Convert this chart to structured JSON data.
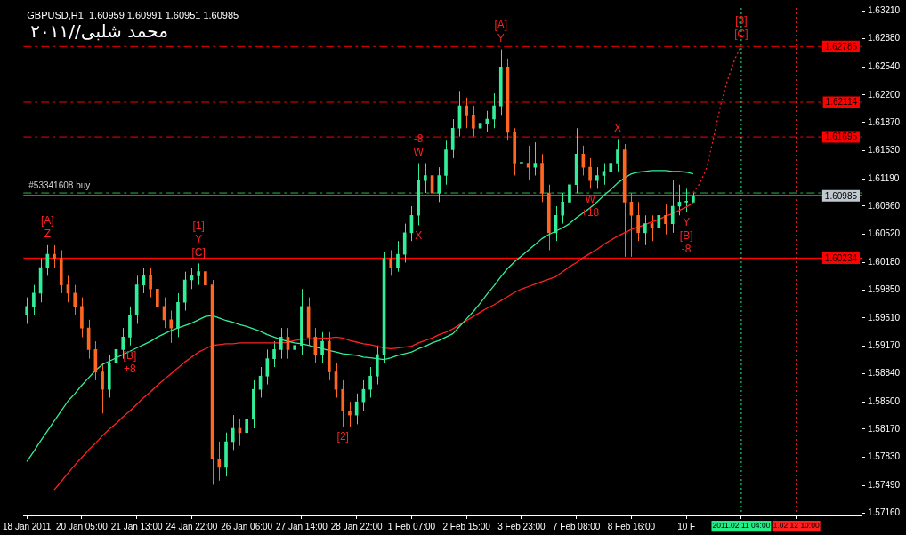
{
  "chart_data": {
    "type": "candlestick",
    "title": "GBPUSD,H1  1.60959 1.60991 1.60951 1.60985",
    "annotations": [
      "محمد شلبى//٢٠١١",
      {
        "text": "Z",
        "y": 1.6039
      },
      {
        "text": "[A]",
        "y": 1.6039
      },
      {
        "text": "[C]",
        "y": 1.6017
      },
      {
        "text": "Y",
        "y": 1.6017
      },
      {
        "text": "[1]",
        "y": 1.6017
      },
      {
        "text": "[B]",
        "y": 1.5918
      },
      {
        "text": "+8",
        "y": 1.5918
      },
      {
        "text": "[2]",
        "y": 1.582
      },
      {
        "text": "W",
        "y": 1.6138
      },
      {
        "text": "-8",
        "y": 1.6138
      },
      {
        "text": "X",
        "y": 1.6063
      },
      {
        "text": "Y",
        "y": 1.6275
      },
      {
        "text": "[A]",
        "y": 1.6275
      },
      {
        "text": "W",
        "y": 1.6107
      },
      {
        "text": "+18",
        "y": 1.6107
      },
      {
        "text": "X",
        "y": 1.6167
      },
      {
        "text": "Y",
        "y": 1.6079
      },
      {
        "text": "[B]",
        "y": 1.6079
      },
      {
        "text": "-8",
        "y": 1.6079
      },
      {
        "text": "[C]",
        "y": 1.628
      },
      {
        "text": "[3]",
        "y": 1.628
      }
    ],
    "categories": [
      "18 Jan 2011",
      null,
      null,
      null,
      null,
      null,
      null,
      null,
      "20 Jan 05:00",
      null,
      null,
      null,
      null,
      null,
      null,
      null,
      "21 Jan 13:00",
      null,
      null,
      null,
      null,
      null,
      null,
      null,
      "24 Jan 22:00",
      null,
      null,
      null,
      null,
      null,
      null,
      null,
      "26 Jan 06:00",
      null,
      null,
      null,
      null,
      null,
      null,
      null,
      "27 Jan 14:00",
      null,
      null,
      null,
      null,
      null,
      null,
      null,
      "28 Jan 22:00",
      null,
      null,
      null,
      null,
      null,
      null,
      null,
      "1 Feb 07:00",
      null,
      null,
      null,
      null,
      null,
      null,
      null,
      "2 Feb 15:00",
      null,
      null,
      null,
      null,
      null,
      null,
      null,
      "3 Feb 23:00",
      null,
      null,
      null,
      null,
      null,
      null,
      null,
      "7 Feb 08:00",
      null,
      null,
      null,
      null,
      null,
      null,
      null,
      "8 Feb 16:00",
      null,
      null,
      null,
      null,
      null,
      null,
      null,
      "10 F",
      null,
      null,
      null,
      null,
      null,
      null,
      null,
      "2011.02.11 04:00",
      null,
      null,
      null,
      null,
      null,
      null,
      null,
      "1.02.12 10:00",
      null,
      null,
      null,
      null,
      null,
      null,
      null,
      null,
      null
    ],
    "ylim": [
      1.5713,
      1.6325
    ],
    "yticks": [
      {
        "value": 1.6321,
        "label": "1.63210"
      },
      {
        "value": 1.6288,
        "label": "1.62880"
      },
      {
        "value": 1.6254,
        "label": "1.62540"
      },
      {
        "value": 1.622,
        "label": "1.62200"
      },
      {
        "value": 1.6187,
        "label": "1.61870"
      },
      {
        "value": 1.6153,
        "label": "1.61530"
      },
      {
        "value": 1.6119,
        "label": "1.61190"
      },
      {
        "value": 1.6086,
        "label": "1.60860"
      },
      {
        "value": 1.6052,
        "label": "1.60520"
      },
      {
        "value": 1.6018,
        "label": "1.60180"
      },
      {
        "value": 1.5985,
        "label": "1.59850"
      },
      {
        "value": 1.5951,
        "label": "1.59510"
      },
      {
        "value": 1.5917,
        "label": "1.59170"
      },
      {
        "value": 1.5884,
        "label": "1.58840"
      },
      {
        "value": 1.585,
        "label": "1.58500"
      },
      {
        "value": 1.5817,
        "label": "1.58170"
      },
      {
        "value": 1.5783,
        "label": "1.57830"
      },
      {
        "value": 1.5749,
        "label": "1.57490"
      },
      {
        "value": 1.5716,
        "label": "1.57160"
      }
    ],
    "grid": false,
    "legend": false,
    "marker": "none",
    "ref_lines": [
      {
        "axis": "y",
        "value": 1.62786,
        "label": "1.62786",
        "color": "#ff0000",
        "line_style": "dashed"
      },
      {
        "axis": "y",
        "value": 1.62114,
        "label": "1.62114",
        "color": "#ff0000",
        "line_style": "dashed"
      },
      {
        "axis": "y",
        "value": 1.61695,
        "label": "1.61695",
        "color": "#ff0000",
        "line_style": "dashed"
      },
      {
        "axis": "y",
        "value": 1.60234,
        "label": "1.60234",
        "color": "#ff0000",
        "line_style": "solid"
      },
      {
        "axis": "y",
        "value": 1.60985,
        "label": "1.60985",
        "color": "#c0c8d0",
        "line_style": "solid"
      },
      {
        "axis": "y",
        "value": 1.6102,
        "label": "#53341608 buy",
        "color": "#22bb44",
        "line_style": "dashed"
      },
      {
        "axis": "x",
        "value": "2011.02.11 04:00",
        "color": "#22ee88",
        "line_style": "dotted"
      },
      {
        "axis": "x",
        "value": "1.02.12 10:00",
        "color": "#ff2020",
        "line_style": "dotted"
      }
    ],
    "series": [
      {
        "ohlc": [
          [
            1.5955,
            1.5976,
            1.5944,
            1.5965
          ],
          [
            1.5965,
            1.5991,
            1.5955,
            1.5981
          ],
          [
            1.5981,
            1.6023,
            1.597,
            1.6012
          ],
          [
            1.6012,
            1.6039,
            1.6002,
            1.6028
          ],
          [
            1.6028,
            1.6039,
            1.6012,
            1.6023
          ],
          [
            1.6023,
            1.6033,
            1.5981,
            1.5991
          ],
          [
            1.5991,
            1.6002,
            1.597,
            1.5981
          ],
          [
            1.5981,
            1.5991,
            1.5955,
            1.5965
          ],
          [
            1.5965,
            1.5976,
            1.5928,
            1.5939
          ],
          [
            1.5939,
            1.5949,
            1.5902,
            1.5913
          ],
          [
            1.5913,
            1.5923,
            1.5876,
            1.5886
          ],
          [
            1.5886,
            1.5897,
            1.5836,
            1.5865
          ],
          [
            1.5865,
            1.5907,
            1.5855,
            1.5897
          ],
          [
            1.5897,
            1.5923,
            1.5886,
            1.5913
          ],
          [
            1.5913,
            1.5939,
            1.5902,
            1.5928
          ],
          [
            1.5928,
            1.5965,
            1.5918,
            1.5955
          ],
          [
            1.5955,
            1.6002,
            1.5944,
            1.5991
          ],
          [
            1.5991,
            1.6012,
            1.5981,
            1.6002
          ],
          [
            1.6002,
            1.6012,
            1.5976,
            1.5986
          ],
          [
            1.5986,
            1.5997,
            1.5955,
            1.5965
          ],
          [
            1.5965,
            1.5976,
            1.5939,
            1.5949
          ],
          [
            1.5949,
            1.596,
            1.5921,
            1.5939
          ],
          [
            1.5939,
            1.5981,
            1.5928,
            1.597
          ],
          [
            1.597,
            1.6007,
            1.596,
            1.5997
          ],
          [
            1.5997,
            1.6012,
            1.5986,
            1.6002
          ],
          [
            1.6002,
            1.6017,
            1.5991,
            1.6007
          ],
          [
            1.6007,
            1.6012,
            1.5981,
            1.5991
          ],
          [
            1.5991,
            1.5997,
            1.575,
            1.5781
          ],
          [
            1.5781,
            1.5802,
            1.5755,
            1.5771
          ],
          [
            1.5771,
            1.5813,
            1.576,
            1.5802
          ],
          [
            1.5802,
            1.5834,
            1.5792,
            1.5818
          ],
          [
            1.5818,
            1.5829,
            1.5797,
            1.5813
          ],
          [
            1.5813,
            1.5839,
            1.5802,
            1.5829
          ],
          [
            1.5829,
            1.5876,
            1.5818,
            1.5865
          ],
          [
            1.5865,
            1.5892,
            1.5855,
            1.5881
          ],
          [
            1.5881,
            1.5913,
            1.5871,
            1.5902
          ],
          [
            1.5902,
            1.5923,
            1.5892,
            1.5913
          ],
          [
            1.5913,
            1.5939,
            1.5902,
            1.5928
          ],
          [
            1.5928,
            1.5939,
            1.5902,
            1.5913
          ],
          [
            1.5913,
            1.5928,
            1.5902,
            1.5918
          ],
          [
            1.5918,
            1.5986,
            1.5907,
            1.5965
          ],
          [
            1.5965,
            1.5976,
            1.5918,
            1.5928
          ],
          [
            1.5928,
            1.5939,
            1.5897,
            1.5907
          ],
          [
            1.5907,
            1.5934,
            1.5897,
            1.5923
          ],
          [
            1.5923,
            1.5934,
            1.5876,
            1.5886
          ],
          [
            1.5886,
            1.5897,
            1.5855,
            1.5865
          ],
          [
            1.5865,
            1.5876,
            1.582,
            1.5839
          ],
          [
            1.5839,
            1.585,
            1.582,
            1.5834
          ],
          [
            1.5834,
            1.586,
            1.5823,
            1.585
          ],
          [
            1.585,
            1.5876,
            1.5839,
            1.5865
          ],
          [
            1.5865,
            1.5892,
            1.5855,
            1.5881
          ],
          [
            1.5881,
            1.5918,
            1.5871,
            1.5907
          ],
          [
            1.5907,
            1.6031,
            1.5897,
            1.6023
          ],
          [
            1.6023,
            1.6033,
            1.6002,
            1.6012
          ],
          [
            1.6012,
            1.6044,
            1.6007,
            1.6028
          ],
          [
            1.6028,
            1.6065,
            1.6018,
            1.6054
          ],
          [
            1.6054,
            1.6086,
            1.6044,
            1.6075
          ],
          [
            1.6075,
            1.6138,
            1.6063,
            1.6117
          ],
          [
            1.6117,
            1.6138,
            1.6102,
            1.6123
          ],
          [
            1.6123,
            1.6144,
            1.6086,
            1.6102
          ],
          [
            1.6102,
            1.6133,
            1.6091,
            1.6123
          ],
          [
            1.6123,
            1.6165,
            1.6112,
            1.6154
          ],
          [
            1.6154,
            1.6191,
            1.6144,
            1.618
          ],
          [
            1.618,
            1.6225,
            1.617,
            1.6207
          ],
          [
            1.6207,
            1.6217,
            1.618,
            1.6196
          ],
          [
            1.6196,
            1.6207,
            1.617,
            1.618
          ],
          [
            1.618,
            1.6196,
            1.617,
            1.6186
          ],
          [
            1.6186,
            1.6201,
            1.6175,
            1.6191
          ],
          [
            1.6191,
            1.6222,
            1.618,
            1.6207
          ],
          [
            1.6207,
            1.6275,
            1.6196,
            1.6254
          ],
          [
            1.6254,
            1.6264,
            1.6165,
            1.6175
          ],
          [
            1.6175,
            1.618,
            1.6123,
            1.6138
          ],
          [
            1.6138,
            1.6159,
            1.6117,
            1.6138
          ],
          [
            1.6138,
            1.6159,
            1.6117,
            1.6133
          ],
          [
            1.6133,
            1.6163,
            1.6123,
            1.6138
          ],
          [
            1.6138,
            1.6149,
            1.6091,
            1.6102
          ],
          [
            1.6102,
            1.6112,
            1.6033,
            1.6054
          ],
          [
            1.6054,
            1.6086,
            1.6044,
            1.6075
          ],
          [
            1.6075,
            1.6102,
            1.6065,
            1.6091
          ],
          [
            1.6091,
            1.6123,
            1.6081,
            1.6112
          ],
          [
            1.6112,
            1.618,
            1.6102,
            1.6149
          ],
          [
            1.6149,
            1.6159,
            1.6123,
            1.6133
          ],
          [
            1.6133,
            1.6144,
            1.6107,
            1.6117
          ],
          [
            1.6117,
            1.6133,
            1.6107,
            1.6123
          ],
          [
            1.6123,
            1.6138,
            1.6112,
            1.6128
          ],
          [
            1.6128,
            1.6149,
            1.6117,
            1.6138
          ],
          [
            1.6138,
            1.6167,
            1.6128,
            1.6154
          ],
          [
            1.6154,
            1.6161,
            1.6025,
            1.6091
          ],
          [
            1.6091,
            1.6102,
            1.6025,
            1.6075
          ],
          [
            1.6075,
            1.6091,
            1.6044,
            1.6054
          ],
          [
            1.6054,
            1.6075,
            1.6039,
            1.6065
          ],
          [
            1.6065,
            1.6075,
            1.6044,
            1.606
          ],
          [
            1.606,
            1.6086,
            1.602,
            1.6075
          ],
          [
            1.6075,
            1.6088,
            1.6052,
            1.6065
          ],
          [
            1.6065,
            1.6117,
            1.6054,
            1.6086
          ],
          [
            1.6086,
            1.6112,
            1.6075,
            1.6091
          ],
          [
            1.6091,
            1.6107,
            1.6079,
            1.6091
          ],
          [
            1.6091,
            1.6102,
            1.6091,
            1.60985
          ],
          null,
          null,
          null,
          null,
          null,
          null,
          null,
          null,
          null,
          null,
          null,
          null,
          null,
          null,
          null,
          null,
          null,
          null,
          null,
          null,
          null,
          null,
          null,
          null
        ],
        "colors": [
          "#33ee99",
          "#33ee99",
          "#33ee99",
          "#33ee99",
          "#ff6622",
          "#ff6622",
          "#ff6622",
          "#ff6622",
          "#ff6622",
          "#ff6622",
          "#ff6622",
          "#ff6622",
          "#33ee99",
          "#33ee99",
          "#33ee99",
          "#33ee99",
          "#33ee99",
          "#33ee99",
          "#ff6622",
          "#ff6622",
          "#ff6622",
          "#ff6622",
          "#33ee99",
          "#33ee99",
          "#33ee99",
          "#33ee99",
          "#ff6622",
          "#ff6622",
          "#ff6622",
          "#33ee99",
          "#33ee99",
          "#ff6622",
          "#33ee99",
          "#33ee99",
          "#33ee99",
          "#33ee99",
          "#33ee99",
          "#33ee99",
          "#ff6622",
          "#33ee99",
          "#33ee99",
          "#ff6622",
          "#ff6622",
          "#33ee99",
          "#ff6622",
          "#ff6622",
          "#ff6622",
          "#ff6622",
          "#33ee99",
          "#33ee99",
          "#33ee99",
          "#33ee99",
          "#33ee99",
          "#ff6622",
          "#33ee99",
          "#33ee99",
          "#33ee99",
          "#33ee99",
          "#33ee99",
          "#ff6622",
          "#33ee99",
          "#33ee99",
          "#33ee99",
          "#33ee99",
          "#ff6622",
          "#ff6622",
          "#33ee99",
          "#33ee99",
          "#33ee99",
          "#33ee99",
          "#ff6622",
          "#ff6622",
          "#33ee99",
          "#ff6622",
          "#33ee99",
          "#ff6622",
          "#ff6622",
          "#33ee99",
          "#33ee99",
          "#33ee99",
          "#33ee99",
          "#ff6622",
          "#ff6622",
          "#33ee99",
          "#33ee99",
          "#33ee99",
          "#33ee99",
          "#ff6622",
          "#ff6622",
          "#ff6622",
          "#33ee99",
          "#ff6622",
          "#33ee99",
          "#ff6622",
          "#33ee99",
          "#33ee99",
          "#33ee99",
          "#33ee99",
          null,
          null,
          null,
          null,
          null,
          null,
          null,
          null,
          null,
          null,
          null,
          null,
          null,
          null,
          null,
          null,
          null,
          null,
          null,
          null,
          null,
          null,
          null,
          null
        ]
      },
      {
        "type": "line",
        "color": "#33ee99",
        "values": [
          1.5778,
          1.579,
          1.5803,
          1.5815,
          1.5827,
          1.5839,
          1.5851,
          1.586,
          1.587,
          1.5879,
          1.5888,
          1.5895,
          1.5899,
          1.5903,
          1.5907,
          1.5911,
          1.5915,
          1.5919,
          1.5923,
          1.5928,
          1.5932,
          1.5936,
          1.5939,
          1.5942,
          1.5945,
          1.5949,
          1.5953,
          1.5954,
          1.5951,
          1.5948,
          1.5946,
          1.5943,
          1.5941,
          1.5938,
          1.5935,
          1.5931,
          1.5928,
          1.5925,
          1.5923,
          1.5921,
          1.592,
          1.5918,
          1.5916,
          1.5914,
          1.5912,
          1.591,
          1.5908,
          1.5907,
          1.5906,
          1.5904,
          1.5903,
          1.5902,
          1.5901,
          1.5903,
          1.5906,
          1.5908,
          1.591,
          1.5914,
          1.5917,
          1.5921,
          1.5924,
          1.5928,
          1.5932,
          1.5941,
          1.595,
          1.5959,
          1.5969,
          1.598,
          1.599,
          1.6001,
          1.6011,
          1.6019,
          1.6026,
          1.6033,
          1.604,
          1.6047,
          1.6052,
          1.6056,
          1.606,
          1.6065,
          1.6072,
          1.6078,
          1.6084,
          1.6091,
          1.6099,
          1.6106,
          1.6114,
          1.612,
          1.6125,
          1.6127,
          1.6128,
          1.6129,
          1.6129,
          1.6129,
          1.6128,
          1.6128,
          1.6127,
          1.6125,
          null,
          null,
          null,
          null,
          null,
          null,
          null,
          null,
          null,
          null,
          null,
          null,
          null,
          null,
          null,
          null,
          null,
          null,
          null,
          null,
          null,
          null,
          null,
          null
        ]
      },
      {
        "type": "line",
        "color": "#ff2020",
        "values": [
          null,
          null,
          null,
          null,
          1.5744,
          1.5754,
          1.5764,
          1.5774,
          1.5783,
          1.5792,
          1.58,
          1.5809,
          1.5817,
          1.5824,
          1.5832,
          1.5839,
          1.5847,
          1.5855,
          1.5862,
          1.587,
          1.5877,
          1.5884,
          1.5891,
          1.5898,
          1.5904,
          1.591,
          1.5914,
          1.5918,
          1.5919,
          1.592,
          1.592,
          1.5921,
          1.5921,
          1.5921,
          1.5921,
          1.5921,
          1.5921,
          1.5921,
          1.5922,
          1.5924,
          1.5925,
          1.5926,
          1.5926,
          1.5927,
          1.5927,
          1.5928,
          1.5927,
          1.5924,
          1.5922,
          1.592,
          1.5919,
          1.5917,
          1.5915,
          1.5914,
          1.5915,
          1.5916,
          1.5917,
          1.5921,
          1.5924,
          1.5927,
          1.5931,
          1.5934,
          1.5938,
          1.5943,
          1.5948,
          1.5953,
          1.5958,
          1.5963,
          1.5967,
          1.5972,
          1.5977,
          1.5982,
          1.5986,
          1.5989,
          1.5992,
          1.5995,
          1.5998,
          1.6001,
          1.6007,
          1.6013,
          1.6018,
          1.6024,
          1.6029,
          1.6034,
          1.604,
          1.6045,
          1.605,
          1.6054,
          1.6058,
          1.6061,
          1.6064,
          1.6067,
          1.607,
          1.6074,
          1.6077,
          1.6081,
          1.6085,
          1.609,
          null,
          null,
          null,
          null,
          null,
          null,
          null,
          null,
          null,
          null,
          null,
          null,
          null,
          null,
          null,
          null,
          null,
          null,
          null,
          null,
          null,
          null,
          null,
          null
        ]
      },
      {
        "type": "line",
        "color": "#ff2020",
        "line_style": "dotted",
        "values": [
          null,
          null,
          null,
          null,
          null,
          null,
          null,
          null,
          null,
          null,
          null,
          null,
          null,
          null,
          null,
          null,
          null,
          null,
          null,
          null,
          null,
          null,
          null,
          null,
          null,
          null,
          null,
          null,
          null,
          null,
          null,
          null,
          null,
          null,
          null,
          null,
          null,
          null,
          null,
          null,
          null,
          null,
          null,
          null,
          null,
          null,
          null,
          null,
          null,
          null,
          null,
          null,
          null,
          null,
          null,
          null,
          null,
          null,
          null,
          null,
          null,
          null,
          null,
          null,
          null,
          null,
          null,
          null,
          null,
          null,
          null,
          null,
          null,
          null,
          null,
          null,
          null,
          null,
          null,
          null,
          null,
          null,
          null,
          null,
          null,
          null,
          null,
          null,
          null,
          null,
          null,
          null,
          null,
          null,
          null,
          null,
          null,
          1.6102,
          1.6114,
          1.6133,
          1.617,
          1.6208,
          1.6238,
          1.6262,
          1.628,
          null,
          null,
          null,
          null,
          null,
          null,
          null,
          null,
          null,
          null,
          null,
          null,
          null,
          null,
          null,
          null,
          null
        ]
      }
    ]
  }
}
